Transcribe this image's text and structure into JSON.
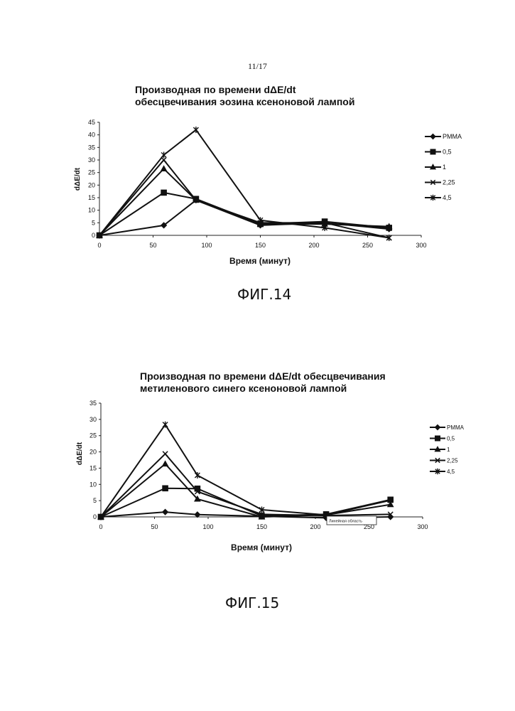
{
  "page": {
    "number": "11/17"
  },
  "figures": [
    {
      "label": "ФИГ.14"
    },
    {
      "label": "ФИГ.15"
    }
  ],
  "chart_data": [
    {
      "type": "line",
      "title": [
        "Производная по времени dΔE/dt",
        "обесцвечивания эозина ксеноновой лампой"
      ],
      "xlabel": "Время (минут)",
      "ylabel": "dΔE/dt",
      "xlim": [
        0,
        300
      ],
      "ylim": [
        0,
        45
      ],
      "xticks": [
        0,
        50,
        100,
        150,
        200,
        250,
        300
      ],
      "yticks": [
        0,
        5,
        10,
        15,
        20,
        25,
        30,
        35,
        40,
        45
      ],
      "grid": false,
      "legend_position": "right",
      "series": [
        {
          "name": "PMMA",
          "marker": "diamond",
          "x": [
            0,
            60,
            90,
            150,
            210,
            270
          ],
          "y": [
            0,
            4,
            14,
            4,
            5,
            2.5
          ]
        },
        {
          "name": "0,5",
          "marker": "square",
          "x": [
            0,
            60,
            90,
            150,
            210,
            270
          ],
          "y": [
            0,
            17,
            14.5,
            4.5,
            5.5,
            3
          ]
        },
        {
          "name": "1",
          "marker": "triangle",
          "x": [
            0,
            60,
            90,
            150,
            210,
            270
          ],
          "y": [
            0,
            26.5,
            14,
            4.5,
            4.5,
            3.5
          ]
        },
        {
          "name": "2,25",
          "marker": "x",
          "x": [
            0,
            60,
            90,
            150,
            210,
            270
          ],
          "y": [
            0,
            30,
            14,
            5,
            5,
            -1
          ]
        },
        {
          "name": "4,5",
          "marker": "star",
          "x": [
            0,
            60,
            90,
            150,
            210,
            270
          ],
          "y": [
            0,
            32,
            42,
            6,
            3,
            -1
          ]
        }
      ]
    },
    {
      "type": "line",
      "title": [
        "Производная по времени dΔE/dt обесцвечивания",
        "метиленового синего ксеноновой лампой"
      ],
      "xlabel": "Время (минут)",
      "ylabel": "dΔE/dt",
      "xlim": [
        0,
        300
      ],
      "ylim": [
        0,
        35
      ],
      "xticks": [
        0,
        50,
        100,
        150,
        200,
        250,
        300
      ],
      "yticks": [
        0,
        5,
        10,
        15,
        20,
        25,
        30,
        35
      ],
      "grid": false,
      "legend_position": "right",
      "annotation": "Линейная область",
      "series": [
        {
          "name": "PMMA",
          "marker": "diamond",
          "x": [
            0,
            60,
            90,
            150,
            210,
            270
          ],
          "y": [
            0,
            1.5,
            0.7,
            0.2,
            -0.3,
            0
          ]
        },
        {
          "name": "0,5",
          "marker": "square",
          "x": [
            0,
            60,
            90,
            150,
            210,
            270
          ],
          "y": [
            0,
            8.8,
            8.7,
            0.3,
            0.8,
            5.3
          ]
        },
        {
          "name": "1",
          "marker": "triangle",
          "x": [
            0,
            60,
            90,
            150,
            210,
            270
          ],
          "y": [
            0,
            16.3,
            5.5,
            0,
            0.6,
            3.8
          ]
        },
        {
          "name": "2,25",
          "marker": "x",
          "x": [
            0,
            60,
            90,
            150,
            210,
            270
          ],
          "y": [
            0,
            19.4,
            7.8,
            0.8,
            0.4,
            0.8
          ]
        },
        {
          "name": "4,5",
          "marker": "star",
          "x": [
            0,
            60,
            90,
            150,
            210,
            270
          ],
          "y": [
            0,
            28.4,
            12.8,
            2.2,
            0.6,
            5.1
          ]
        }
      ]
    }
  ]
}
